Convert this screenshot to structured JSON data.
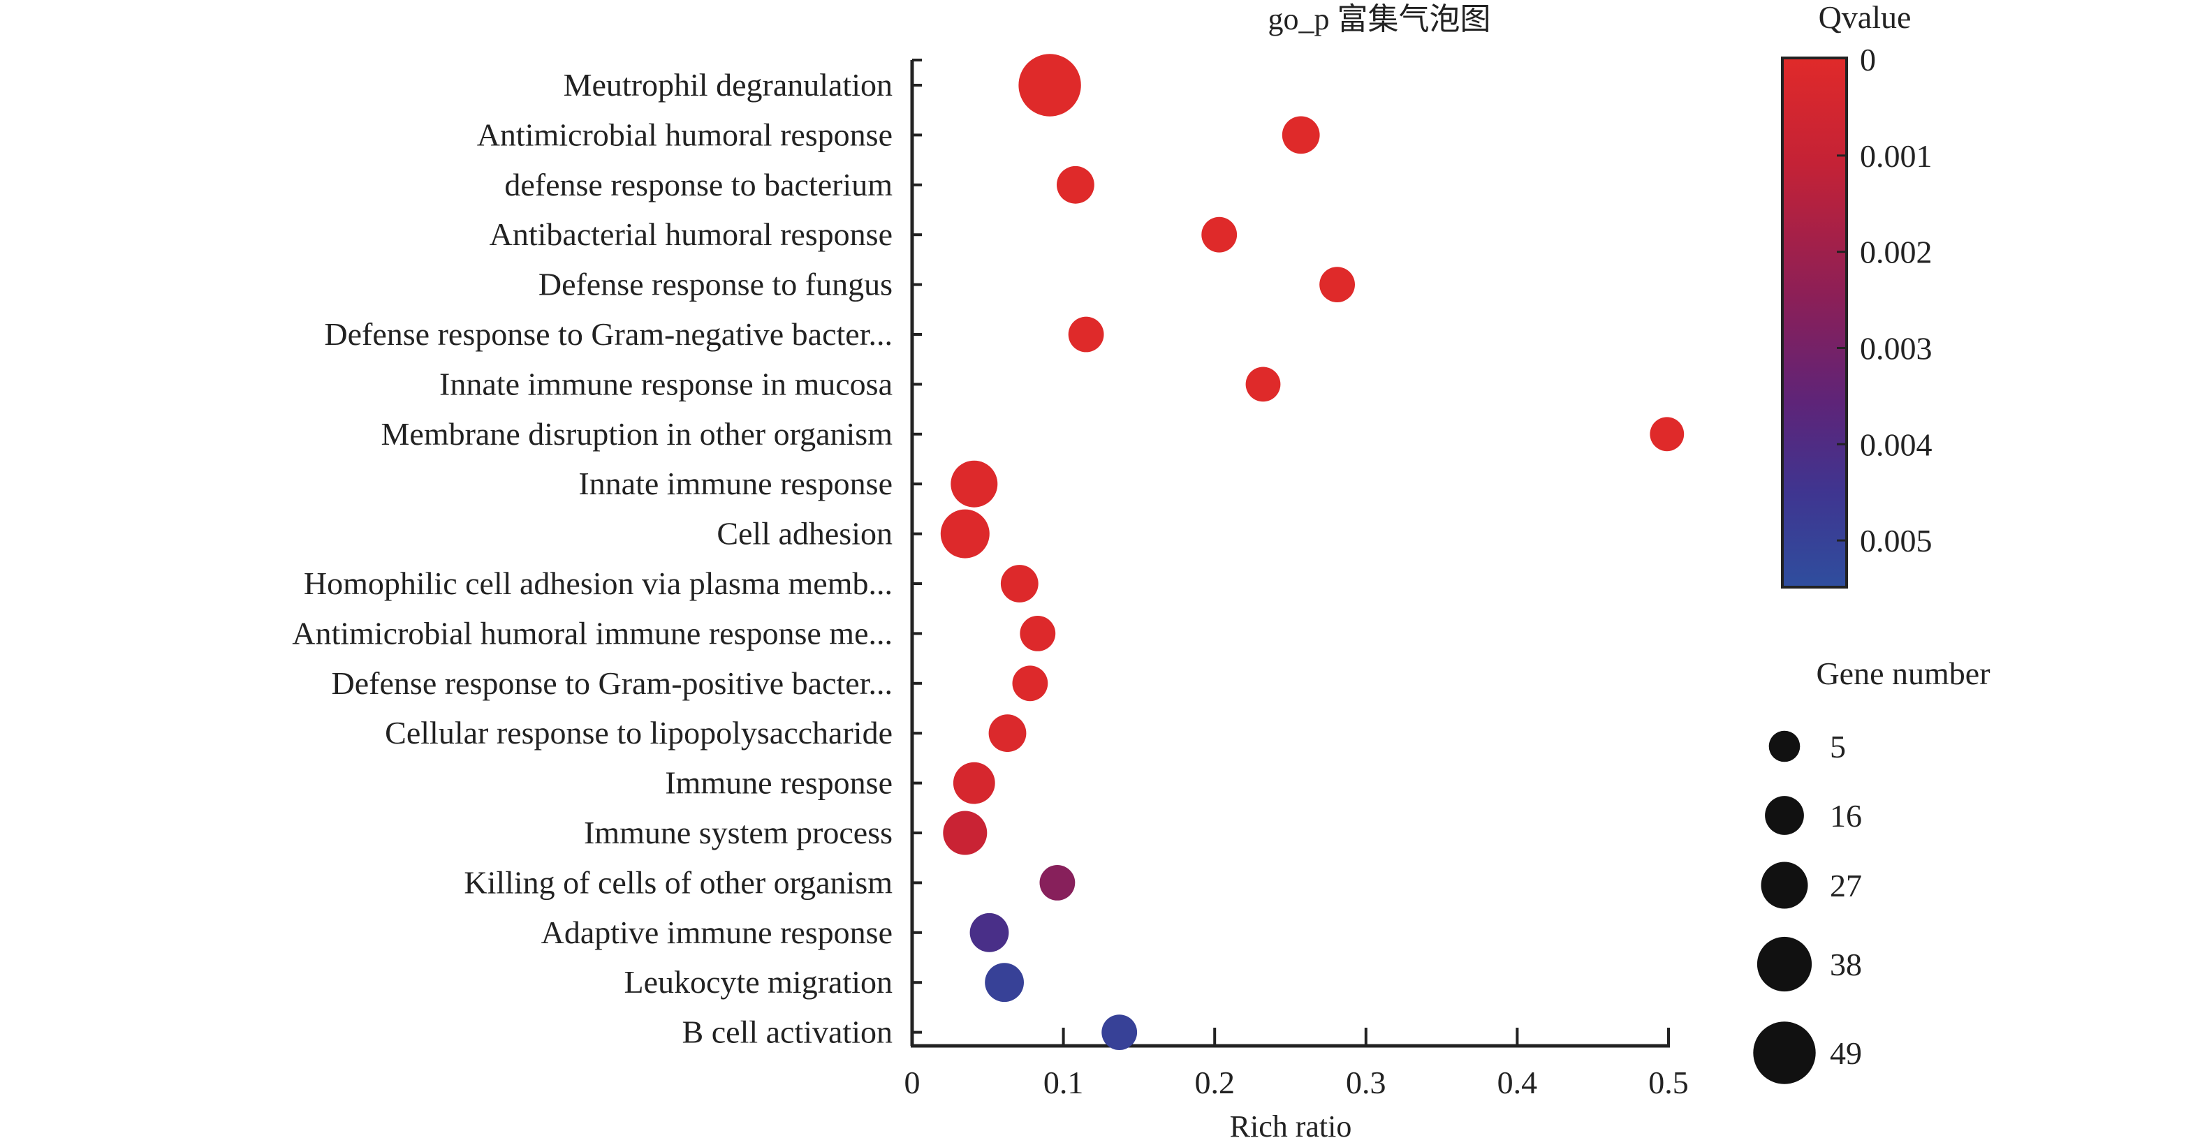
{
  "chart_data": {
    "type": "scatter",
    "subtype": "bubble",
    "title": "go_p 富集气泡图",
    "xlabel": "Rich ratio",
    "ylabel": "",
    "xlim": [
      0,
      0.5
    ],
    "xticks": [
      "0",
      "0.1",
      "0.2",
      "0.3",
      "0.4",
      "0.5"
    ],
    "xtick_values": [
      0,
      0.1,
      0.2,
      0.3,
      0.4,
      0.5
    ],
    "grid": false,
    "categories": [
      "Meutrophil degranulation",
      "Antimicrobial humoral response",
      "defense response to bacterium",
      "Antibacterial humoral response",
      "Defense response to fungus",
      "Defense response to Gram-negative bacter...",
      "Innate immune response in mucosa",
      "Membrane disruption in other organism",
      "Innate immune response",
      "Cell adhesion",
      "Homophilic cell adhesion via plasma memb...",
      "Antimicrobial humoral immune response me...",
      "Defense response to Gram-positive bacter...",
      "Cellular response to lipopolysaccharide",
      "Immune response",
      "Immune system process",
      "Killing of cells of other organism",
      "Adaptive immune response",
      "Leukocyte migration",
      "B cell activation"
    ],
    "rich_ratio": [
      0.091,
      0.257,
      0.108,
      0.203,
      0.281,
      0.115,
      0.232,
      0.499,
      0.041,
      0.035,
      0.071,
      0.083,
      0.078,
      0.063,
      0.041,
      0.035,
      0.096,
      0.051,
      0.061,
      0.137
    ],
    "gene_number": [
      49,
      14,
      14,
      11,
      11,
      11,
      10,
      9,
      27,
      30,
      14,
      11,
      11,
      14,
      20,
      23,
      11,
      16,
      16,
      11
    ],
    "qvalue": [
      2e-05,
      3e-05,
      3e-05,
      3e-05,
      3e-05,
      3e-05,
      3e-05,
      3e-05,
      0.0001,
      0.0001,
      0.0001,
      0.0001,
      0.0001,
      0.0002,
      0.0004,
      0.0009,
      0.0026,
      0.0042,
      0.005,
      0.005
    ],
    "color_legend": {
      "title": "Qvalue",
      "ticks": [
        "0",
        "0.001",
        "0.002",
        "0.003",
        "0.004",
        "0.005"
      ],
      "tick_values": [
        0,
        0.001,
        0.002,
        0.003,
        0.004,
        0.005
      ],
      "range": [
        0,
        0.0055
      ],
      "low_color": "#e02a2a",
      "high_color": "#2f4e9e",
      "placement": "right-top"
    },
    "size_legend": {
      "title": "Gene number",
      "values": [
        5,
        16,
        27,
        38,
        49
      ],
      "labels": [
        "5",
        "16",
        "27",
        "38",
        "49"
      ],
      "placement": "right-bottom"
    }
  }
}
